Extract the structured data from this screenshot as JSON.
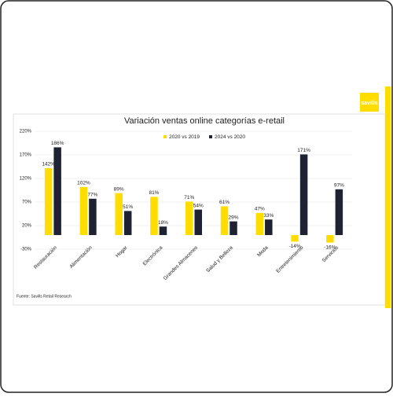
{
  "logo": "savills",
  "chart_data": {
    "type": "bar",
    "title": "Variación ventas online categorías e-retail",
    "source": "Fuente: Savills Retail Research",
    "categories": [
      "Restauración",
      "Alimentación",
      "Hogar",
      "Electrónica",
      "Grandes Almacenes",
      "Salud y Belleza",
      "Moda",
      "Entretenimiento",
      "Servicios"
    ],
    "series": [
      {
        "name": "2020 vs 2019",
        "color": "#FFDD00",
        "values": [
          142,
          102,
          89,
          81,
          71,
          61,
          47,
          -14,
          -16
        ],
        "value_labels": [
          "142%",
          "102%",
          "89%",
          "81%",
          "71%",
          "61%",
          "47%",
          "-14%",
          "-16%"
        ]
      },
      {
        "name": "2024 vs 2020",
        "color": "#1F2233",
        "values": [
          186,
          77,
          51,
          18,
          54,
          29,
          33,
          171,
          97
        ],
        "value_labels": [
          "186%",
          "77%",
          "51%",
          "18%",
          "54%",
          "29%",
          "33%",
          "171%",
          "97%"
        ]
      }
    ],
    "ylim": [
      -30,
      220
    ],
    "yticks": [
      {
        "value": -30,
        "label": "-30%"
      },
      {
        "value": 20,
        "label": "20%"
      },
      {
        "value": 70,
        "label": "70%"
      },
      {
        "value": 120,
        "label": "120%"
      },
      {
        "value": 170,
        "label": "170%"
      },
      {
        "value": 220,
        "label": "220%"
      }
    ],
    "grid": true
  }
}
